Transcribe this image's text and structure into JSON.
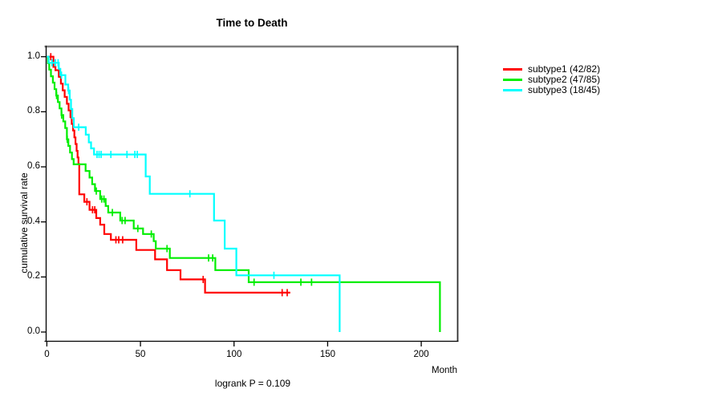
{
  "chart_data": {
    "type": "line",
    "variant": "kaplan-meier-step",
    "title": "Time to Death",
    "xlabel": "Month",
    "ylabel": "cumulative survival rate",
    "annotation": "logrank P = 0.109",
    "xlim": [
      0,
      219
    ],
    "ylim": [
      0.0,
      1.0
    ],
    "grid": false,
    "legend_position": "right-outside",
    "x_tick_values": [
      0,
      50,
      100,
      150,
      200
    ],
    "x_tick_labels": [
      "0",
      "50",
      "100",
      "150",
      "200"
    ],
    "y_tick_values": [
      0.0,
      0.2,
      0.4,
      0.6,
      0.8,
      1.0
    ],
    "y_tick_labels": [
      "0.0",
      "0.2",
      "0.4",
      "0.6",
      "0.8",
      "1.0"
    ],
    "series": [
      {
        "name": "subtype1 (42/82)",
        "color": "#ff0000",
        "end_time": 130,
        "steps": [
          [
            0,
            1.0
          ],
          [
            3.5,
            0.963
          ],
          [
            4.6,
            0.951
          ],
          [
            6.4,
            0.927
          ],
          [
            7.5,
            0.902
          ],
          [
            8.5,
            0.878
          ],
          [
            9.5,
            0.854
          ],
          [
            10.7,
            0.829
          ],
          [
            11.6,
            0.805
          ],
          [
            12.6,
            0.78
          ],
          [
            13.3,
            0.756
          ],
          [
            14.0,
            0.732
          ],
          [
            14.7,
            0.707
          ],
          [
            15.3,
            0.683
          ],
          [
            15.9,
            0.658
          ],
          [
            16.4,
            0.634
          ],
          [
            16.9,
            0.61
          ],
          [
            17.3,
            0.5
          ],
          [
            20.0,
            0.473
          ],
          [
            22.8,
            0.444
          ],
          [
            26.4,
            0.414
          ],
          [
            28.5,
            0.39
          ],
          [
            30.7,
            0.356
          ],
          [
            34.2,
            0.335
          ],
          [
            47.8,
            0.298
          ],
          [
            57.8,
            0.264
          ],
          [
            64.2,
            0.225
          ],
          [
            71.4,
            0.191
          ],
          [
            84.5,
            0.143
          ]
        ],
        "censors": [
          [
            2.1,
            1.0
          ],
          [
            21.4,
            0.473
          ],
          [
            24.4,
            0.444
          ],
          [
            25.6,
            0.444
          ],
          [
            36.9,
            0.335
          ],
          [
            38.4,
            0.335
          ],
          [
            40.5,
            0.335
          ],
          [
            83.5,
            0.191
          ],
          [
            125.7,
            0.143
          ],
          [
            128.4,
            0.143
          ]
        ]
      },
      {
        "name": "subtype2 (47/85)",
        "color": "#00ee00",
        "end_time": 210,
        "steps": [
          [
            0,
            1.0
          ],
          [
            0.6,
            0.976
          ],
          [
            1.3,
            0.953
          ],
          [
            2.2,
            0.929
          ],
          [
            3.2,
            0.906
          ],
          [
            4.1,
            0.882
          ],
          [
            5.0,
            0.859
          ],
          [
            5.9,
            0.835
          ],
          [
            6.8,
            0.812
          ],
          [
            7.8,
            0.788
          ],
          [
            8.8,
            0.765
          ],
          [
            9.8,
            0.741
          ],
          [
            10.7,
            0.7
          ],
          [
            11.5,
            0.676
          ],
          [
            12.4,
            0.652
          ],
          [
            13.4,
            0.628
          ],
          [
            14.3,
            0.609
          ],
          [
            20.7,
            0.585
          ],
          [
            22.8,
            0.561
          ],
          [
            24.2,
            0.537
          ],
          [
            25.7,
            0.512
          ],
          [
            28.5,
            0.483
          ],
          [
            31.4,
            0.458
          ],
          [
            32.8,
            0.434
          ],
          [
            39.2,
            0.405
          ],
          [
            46.4,
            0.376
          ],
          [
            51.4,
            0.356
          ],
          [
            57.1,
            0.33
          ],
          [
            58.2,
            0.303
          ],
          [
            65.7,
            0.269
          ],
          [
            90.0,
            0.225
          ],
          [
            107.8,
            0.181
          ],
          [
            210,
            0.0
          ]
        ],
        "censors": [
          [
            5.2,
            0.859
          ],
          [
            7.9,
            0.788
          ],
          [
            10.9,
            0.7
          ],
          [
            26.4,
            0.512
          ],
          [
            29.3,
            0.483
          ],
          [
            30.5,
            0.483
          ],
          [
            35.0,
            0.434
          ],
          [
            40.2,
            0.405
          ],
          [
            41.8,
            0.405
          ],
          [
            48.6,
            0.376
          ],
          [
            55.8,
            0.356
          ],
          [
            64.2,
            0.303
          ],
          [
            86.4,
            0.269
          ],
          [
            88.6,
            0.269
          ],
          [
            110.7,
            0.181
          ],
          [
            135.7,
            0.181
          ],
          [
            141.4,
            0.181
          ]
        ]
      },
      {
        "name": "subtype3 (18/45)",
        "color": "#00ffff",
        "end_time": 156.4,
        "steps": [
          [
            0,
            1.0
          ],
          [
            1.0,
            0.978
          ],
          [
            6.4,
            0.956
          ],
          [
            7.2,
            0.933
          ],
          [
            9.9,
            0.899
          ],
          [
            11.4,
            0.877
          ],
          [
            12.2,
            0.844
          ],
          [
            12.9,
            0.81
          ],
          [
            13.6,
            0.777
          ],
          [
            14.4,
            0.744
          ],
          [
            20.8,
            0.717
          ],
          [
            22.4,
            0.689
          ],
          [
            23.6,
            0.667
          ],
          [
            25.2,
            0.645
          ],
          [
            52.8,
            0.565
          ],
          [
            55.0,
            0.502
          ],
          [
            89.3,
            0.405
          ],
          [
            95.0,
            0.303
          ],
          [
            101.2,
            0.206
          ],
          [
            156.4,
            0.0
          ]
        ],
        "censors": [
          [
            2.8,
            0.978
          ],
          [
            4.5,
            0.978
          ],
          [
            6.0,
            0.978
          ],
          [
            7.8,
            0.933
          ],
          [
            11.6,
            0.877
          ],
          [
            17.0,
            0.744
          ],
          [
            26.8,
            0.645
          ],
          [
            27.9,
            0.645
          ],
          [
            29.0,
            0.645
          ],
          [
            34.2,
            0.645
          ],
          [
            42.8,
            0.645
          ],
          [
            47.0,
            0.645
          ],
          [
            48.3,
            0.645
          ],
          [
            76.4,
            0.502
          ],
          [
            121.3,
            0.206
          ]
        ]
      }
    ]
  }
}
